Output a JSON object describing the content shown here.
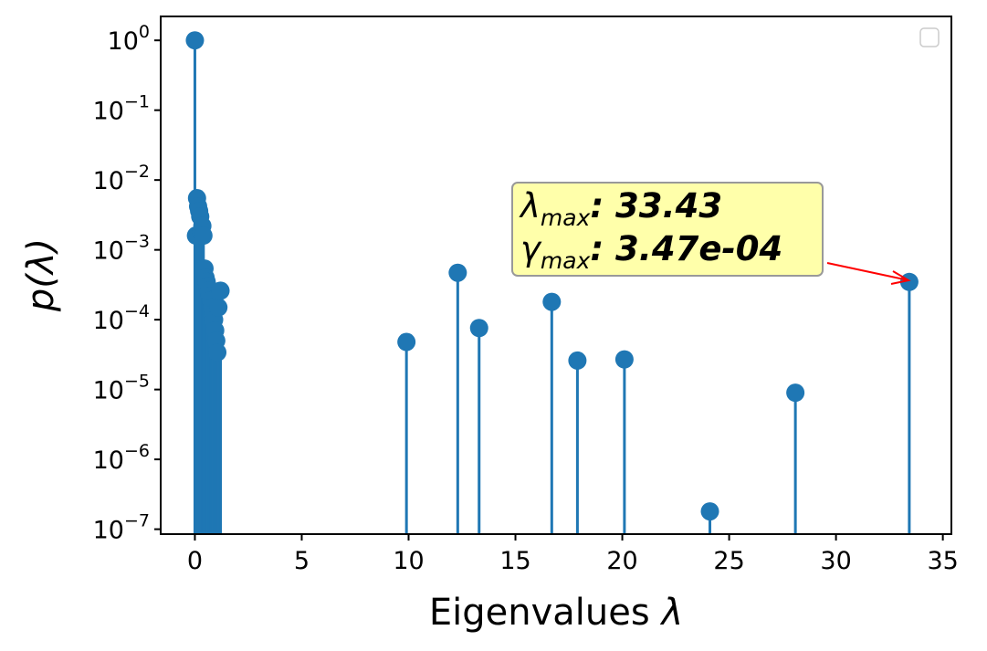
{
  "chart_data": {
    "type": "scatter",
    "plot_style": "stem",
    "xlabel_text": "Eigenvalues",
    "xlabel_symbol": "λ",
    "ylabel": "p(λ)",
    "x_ticks": [
      "0",
      "5",
      "10",
      "15",
      "20",
      "25",
      "30",
      "35"
    ],
    "y_ticks": [
      "10^0",
      "10^-1",
      "10^-2",
      "10^-3",
      "10^-4",
      "10^-5",
      "10^-6",
      "10^-7"
    ],
    "xlim": [
      -1.6,
      35.4
    ],
    "ylim": [
      8.5e-08,
      2.2
    ],
    "y_scale": "log",
    "grid": false,
    "legend": "top-right (empty)",
    "color": "#1f77b4",
    "annotation": {
      "lambda_symbol": "λ",
      "lambda_sub": "max",
      "lambda_value": ": 33.43",
      "gamma_symbol": "γ",
      "gamma_sub": "max",
      "gamma_value": ": 3.47e-04",
      "box_color": "#ffffaa",
      "arrow_color": "#ff0000"
    },
    "x": [
      0.0,
      0.05,
      0.1,
      0.15,
      0.2,
      0.25,
      0.3,
      0.35,
      0.4,
      0.45,
      0.5,
      0.55,
      0.6,
      0.65,
      0.7,
      0.75,
      0.8,
      0.85,
      0.9,
      0.95,
      1.0,
      1.05,
      1.1,
      1.2,
      9.9,
      12.3,
      13.3,
      16.7,
      17.9,
      20.1,
      24.1,
      28.1,
      33.43
    ],
    "y": [
      1.0,
      0.0016,
      0.0055,
      0.0042,
      0.0036,
      0.003,
      0.0018,
      0.0022,
      0.0016,
      0.00054,
      0.0004,
      0.00035,
      0.0003,
      0.00026,
      0.00022,
      0.00019,
      0.00015,
      0.00012,
      0.0001,
      7e-05,
      5e-05,
      3.4e-05,
      0.00015,
      0.00026,
      4.8e-05,
      0.00047,
      7.6e-05,
      0.00018,
      2.6e-05,
      2.7e-05,
      1.8e-07,
      9e-06,
      0.000347
    ]
  }
}
